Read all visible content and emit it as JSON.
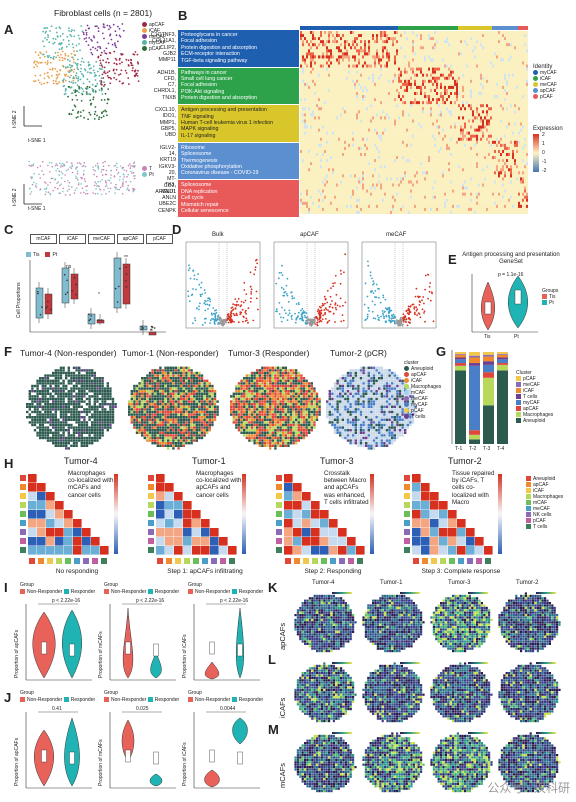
{
  "panels": {
    "A": "A",
    "B": "B",
    "C": "C",
    "D": "D",
    "E": "E",
    "F": "F",
    "G": "G",
    "H": "H",
    "I": "I",
    "J": "J",
    "K": "K",
    "L": "L",
    "M": "M"
  },
  "panel_a": {
    "title": "Fibroblast cells (n = 2801)",
    "xlabel": "t-SNE 1",
    "ylabel": "t-SNE 2",
    "legend": [
      "apCAF",
      "iCAF",
      "meCAF",
      "myCAF",
      "pCAF"
    ],
    "legend_colors": [
      "#9d2a44",
      "#e8a04a",
      "#7a3d9a",
      "#56b4a8",
      "#2f6f3a"
    ],
    "legend2": [
      "T",
      "Pt"
    ],
    "legend2_colors": [
      "#c983b8",
      "#7ec8c8"
    ]
  },
  "panel_b": {
    "bands": [
      {
        "color": "#1f5fb0",
        "terms": [
          "Proteoglycans in cancer",
          "Focal adhesion",
          "Protein digestion and absorption",
          "ECM-receptor interaction",
          "TGF-beta signaling pathway"
        ],
        "genes": [
          "C1QTNF3,",
          "COL11A1,",
          "CLIP2,",
          "GJB2",
          "MMP11"
        ]
      },
      {
        "color": "#2ea24a",
        "terms": [
          "Pathways in cancer",
          "Small cell lung cancer",
          "Focal adhesion",
          "PI3K-Akt signaling",
          "Protein digestion and absorption"
        ],
        "genes": [
          "ADH1B,",
          "CFD,",
          "C7,",
          "CHRDL1,",
          "TNXB"
        ]
      },
      {
        "color": "#d9c62a",
        "terms": [
          "Antigen processing and presentation",
          "TNF signaling",
          "Human T-cell leukemia virus 1 infection",
          "MAPK signaling",
          "IL-17 signaling"
        ],
        "genes": [
          "CXCL10,",
          "IDO1,",
          "MMP1,",
          "GBP5,",
          "UBD"
        ]
      },
      {
        "color": "#5b8fd0",
        "terms": [
          "Ribosome",
          "Spliceosome",
          "Thermogenesis",
          "Oxidative phosphorylation",
          "Coronavirus disease - COVID-19"
        ],
        "genes": [
          "IGLV2-14,",
          "KRT19",
          "IGKV3-20,",
          "MT-CO2,",
          "ARGLU1"
        ]
      },
      {
        "color": "#e85a5a",
        "terms": [
          "Spliceosome",
          "DNA replication",
          "Cell cycle",
          "Mismatch repair",
          "Cellular senescence"
        ],
        "genes": [
          "TK1,",
          "MND1",
          "ANLN",
          "UBE2C",
          "CENPK"
        ]
      }
    ],
    "identity_title": "Identity",
    "identity": [
      "myCAF",
      "iCAF",
      "meCAF",
      "apCAF",
      "pCAF"
    ],
    "identity_colors": [
      "#1f5fb0",
      "#2ea24a",
      "#d9c62a",
      "#5b8fd0",
      "#e85a5a"
    ],
    "expression_title": "Expression",
    "expression_ticks": [
      "2",
      "1",
      "0",
      "-1",
      "-2"
    ]
  },
  "panel_c": {
    "tabs": [
      "mCAF",
      "iCAF",
      "meCAF",
      "apCAF",
      "pCAF"
    ],
    "legend": [
      "Tis",
      "Pt"
    ],
    "ylabel": "Cell Proportions",
    "sig": [
      "ns",
      "*",
      "**"
    ]
  },
  "panel_d": {
    "titles": [
      "Bulk",
      "apCAF",
      "meCAF"
    ]
  },
  "panel_e": {
    "title": "Antigen processing and presentation GeneSet",
    "legend_title": "Groups",
    "groups": [
      "Tis",
      "Pt"
    ],
    "pval": "p = 1.1e-16"
  },
  "panel_f": {
    "titles": [
      "Tumor-4 (Non-responder)",
      "Tumor-1 (Non-responder)",
      "Tumor-3 (Responder)",
      "Tumor-2 (pCR)"
    ],
    "legend_title": "cluster",
    "legend": [
      "Aneuploid",
      "apCAF",
      "iCAF",
      "Macrophages",
      "mCAF",
      "meCAF",
      "myCAF",
      "pCAF",
      "T cells"
    ],
    "legend_colors": [
      "#2d5a4f",
      "#e0463a",
      "#f08a2c",
      "#b7d85b",
      "#9ed4f0",
      "#8a6bb8",
      "#4a7fc8",
      "#f3c84a",
      "#6e3f8f"
    ]
  },
  "panel_g": {
    "xticks": [
      "T-1",
      "T-2",
      "T-3",
      "T-4"
    ],
    "legend_title": "Cluster",
    "legend": [
      "pCAF",
      "meCAF",
      "iCAF",
      "T cells",
      "myCAF",
      "apCAF",
      "Macrophages",
      "Aneuploid"
    ],
    "legend_colors": [
      "#f3c84a",
      "#8a6bb8",
      "#f08a2c",
      "#6e3f8f",
      "#4a7fc8",
      "#e0463a",
      "#b7d85b",
      "#2d5a4f"
    ],
    "values": [
      [
        2,
        1,
        3,
        2,
        4,
        3,
        5,
        80
      ],
      [
        4,
        2,
        6,
        3,
        70,
        5,
        5,
        5
      ],
      [
        3,
        2,
        5,
        4,
        8,
        6,
        30,
        42
      ],
      [
        2,
        1,
        3,
        2,
        4,
        2,
        6,
        80
      ]
    ]
  },
  "panel_h": {
    "titles": [
      "Tumor-4",
      "Tumor-1",
      "Tumor-3",
      "Tumor-2"
    ],
    "notes": [
      "Macrophages co-localized with mCAFs and cancer cells",
      "Macrophages co-localized with apCAFs and cancer cells",
      "Crosstalk between Macro and apCAFs was enhanced, T cells infiltrated",
      "Tissue repaired by iCAFs, T cells co-localized with Macro"
    ],
    "captions": [
      "No responding",
      "Step 1: apCAFs infiltrating",
      "Step 2: Responding",
      "Step 3: Complete response"
    ],
    "legend": [
      "Aneuploid",
      "apCAF",
      "iCAF",
      "Macrophages",
      "mCAF",
      "meCAF",
      "NK cells",
      "pCAF",
      "T cells"
    ],
    "legend_colors": [
      "#e0463a",
      "#f08a2c",
      "#f3c84a",
      "#b7d85b",
      "#6bbf5a",
      "#4a9fc8",
      "#8a6bb8",
      "#c05fa0",
      "#3c7f5a"
    ]
  },
  "panel_i": {
    "group_label": "Group",
    "groups": [
      "Non-Responder",
      "Responder"
    ],
    "colors": [
      "#e8625a",
      "#1fb3b3"
    ],
    "ylabels": [
      "Proportion of apCAFs",
      "Proportion of mCAFs",
      "Proportion of iCAFs"
    ],
    "pvals": [
      "p < 2.22e-16",
      "p < 2.22e-16",
      "p < 2.22e-16"
    ]
  },
  "panel_j": {
    "group_label": "Group",
    "groups": [
      "Non-Responder",
      "Responder"
    ],
    "ylabels": [
      "Proportion of apCAFs",
      "Proportion of mCAFs",
      "Proportion of iCAFs"
    ],
    "pvals": [
      "0.41",
      "0.025",
      "0.0044"
    ]
  },
  "panel_klm": {
    "titles": [
      "Tumor-4",
      "Tumor-1",
      "Tumor-3",
      "Tumor-2"
    ],
    "rows": [
      "apCAFs",
      "iCAFs",
      "mCAFs"
    ]
  },
  "watermark": "公众号 · 汉科研"
}
